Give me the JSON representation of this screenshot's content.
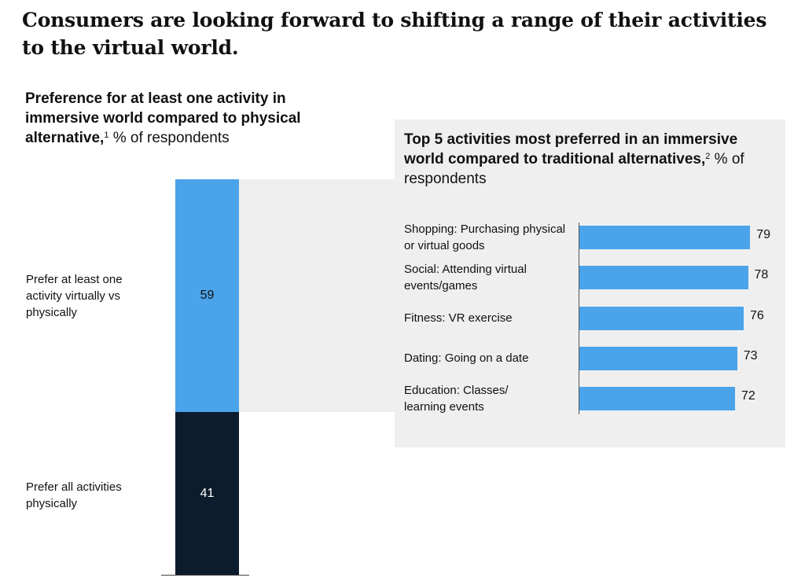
{
  "headline": "Consumers are looking forward to shifting a range of their activities to the virtual world.",
  "left_chart": {
    "title_bold": "Preference for at least one activity in immersive world compared to physical alternative,",
    "title_sup": "1",
    "title_rest": " % of respondents"
  },
  "right_chart": {
    "title_bold": "Top 5 activities most preferred in an immersive world compared to traditional alternatives,",
    "title_sup": "2",
    "title_rest": " % of respondents"
  },
  "chart_data": [
    {
      "type": "bar",
      "stacked": true,
      "orientation": "vertical",
      "title": "Preference for at least one activity in immersive world compared to physical alternative, % of respondents",
      "segments": [
        {
          "label": "Prefer at least one activity virtually vs physically",
          "value": 59,
          "color": "#4ba3ea"
        },
        {
          "label": "Prefer all activities physically",
          "value": 41,
          "color": "#0c1c2c"
        }
      ]
    },
    {
      "type": "bar",
      "orientation": "horizontal",
      "title": "Top 5 activities most preferred in an immersive world compared to traditional alternatives, % of respondents",
      "categories": [
        "Shopping: Purchasing physical or virtual goods",
        "Social: Attending virtual events/games",
        "Fitness: VR exercise",
        "Dating: Going on a date",
        "Education: Classes/ learning events"
      ],
      "values": [
        79,
        78,
        76,
        73,
        72
      ],
      "color": "#4ba3ea"
    }
  ]
}
